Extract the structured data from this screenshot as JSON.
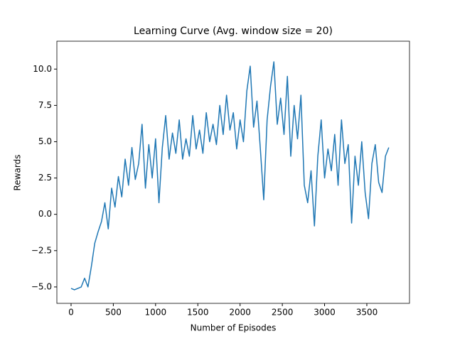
{
  "chart_data": {
    "type": "line",
    "title": "Learning Curve (Avg. window size = 20)",
    "x_label": "Number of Episodes",
    "y_label": "Rewards",
    "x": [
      0,
      40,
      80,
      120,
      160,
      200,
      240,
      280,
      320,
      360,
      400,
      440,
      480,
      520,
      560,
      600,
      640,
      680,
      720,
      760,
      800,
      840,
      880,
      920,
      960,
      1000,
      1040,
      1080,
      1120,
      1160,
      1200,
      1240,
      1280,
      1320,
      1360,
      1400,
      1440,
      1480,
      1520,
      1560,
      1600,
      1640,
      1680,
      1720,
      1760,
      1800,
      1840,
      1880,
      1920,
      1960,
      2000,
      2040,
      2080,
      2120,
      2160,
      2200,
      2240,
      2280,
      2320,
      2360,
      2400,
      2440,
      2480,
      2520,
      2560,
      2600,
      2640,
      2680,
      2720,
      2760,
      2800,
      2840,
      2880,
      2920,
      2960,
      3000,
      3040,
      3080,
      3120,
      3160,
      3200,
      3240,
      3280,
      3320,
      3360,
      3400,
      3440,
      3480,
      3520,
      3560,
      3600,
      3640,
      3680,
      3720,
      3760
    ],
    "series": [
      {
        "color": "#1f77b4",
        "values": [
          -5.1,
          -5.2,
          -5.1,
          -5.0,
          -4.4,
          -5.0,
          -3.6,
          -2.0,
          -1.2,
          -0.5,
          0.8,
          -1.0,
          1.8,
          0.5,
          2.6,
          1.2,
          3.8,
          2.0,
          4.6,
          2.4,
          3.5,
          6.2,
          1.8,
          4.8,
          2.5,
          5.2,
          0.8,
          4.6,
          6.8,
          3.8,
          5.6,
          4.2,
          6.5,
          3.8,
          5.2,
          4.0,
          6.8,
          4.5,
          5.8,
          4.2,
          7.0,
          5.0,
          6.2,
          4.8,
          7.5,
          5.5,
          8.2,
          5.8,
          7.0,
          4.5,
          6.5,
          5.0,
          8.5,
          10.2,
          6.0,
          7.8,
          4.5,
          1.0,
          6.5,
          8.8,
          10.5,
          6.2,
          8.0,
          5.5,
          9.5,
          4.0,
          7.5,
          5.2,
          8.2,
          2.0,
          0.8,
          3.0,
          -0.8,
          4.0,
          6.5,
          2.5,
          4.5,
          3.0,
          5.5,
          2.0,
          6.5,
          3.5,
          4.8,
          -0.6,
          4.0,
          2.0,
          5.0,
          1.5,
          -0.3,
          3.5,
          4.8,
          2.2,
          1.5,
          4.0,
          4.6
        ]
      }
    ],
    "xlim": [
      -168,
      4005
    ],
    "ylim": [
      -6.13,
      11.92
    ],
    "xticks": [
      0,
      500,
      1000,
      1500,
      2000,
      2500,
      3000,
      3500
    ],
    "yticks": [
      {
        "value": -5,
        "label": "−5.0"
      },
      {
        "value": -2.5,
        "label": "−2.5"
      },
      {
        "value": 0,
        "label": "0.0"
      },
      {
        "value": 2.5,
        "label": "2.5"
      },
      {
        "value": 5,
        "label": "5.0"
      },
      {
        "value": 7.5,
        "label": "7.5"
      },
      {
        "value": 10,
        "label": "10.0"
      }
    ],
    "grid": false
  }
}
